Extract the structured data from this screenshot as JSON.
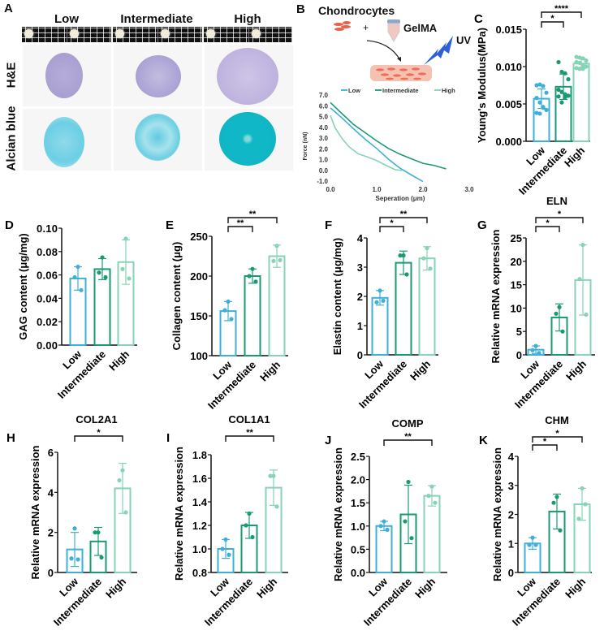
{
  "colors": {
    "low": "#3eb0d8",
    "intermediate": "#1a9a72",
    "high": "#86d3b6",
    "axis": "#111111"
  },
  "panel_a": {
    "letter": "A",
    "columns": [
      "Low",
      "Intermediate",
      "High"
    ],
    "rows": [
      "H&E",
      "Alcian blue"
    ]
  },
  "panel_b": {
    "letter": "B",
    "schematic": {
      "cells_label": "Chondrocytes",
      "plus": "+",
      "gel_label": "GelMA",
      "uv_label": "UV"
    }
  },
  "chart_data": [
    {
      "id": "B",
      "type": "line",
      "title": "",
      "xlabel": "Seperation (μm)",
      "ylabel": "Force (nN)",
      "xlim": [
        0,
        3
      ],
      "ylim": [
        -1,
        7
      ],
      "xticks": [
        "0.0",
        "1.0",
        "2.0",
        "3.0"
      ],
      "yticks": [
        "-1.0",
        "0.0",
        "1.0",
        "2.0",
        "3.0",
        "4.0",
        "5.0",
        "6.0",
        "7.0"
      ],
      "legend_position": "top",
      "series": [
        {
          "name": "Low",
          "points": [
            [
              0,
              5.8
            ],
            [
              0.25,
              4.9
            ],
            [
              0.5,
              3.9
            ],
            [
              0.75,
              2.9
            ],
            [
              1.0,
              2.0
            ],
            [
              1.25,
              1.0
            ],
            [
              1.5,
              0.2
            ],
            [
              1.75,
              -0.4
            ],
            [
              2.0,
              -1.0
            ]
          ]
        },
        {
          "name": "Intermediate",
          "points": [
            [
              0,
              6.3
            ],
            [
              0.25,
              5.3
            ],
            [
              0.5,
              4.3
            ],
            [
              0.75,
              3.5
            ],
            [
              1.0,
              2.7
            ],
            [
              1.25,
              2.0
            ],
            [
              1.5,
              1.5
            ],
            [
              1.75,
              1.1
            ],
            [
              2.0,
              0.7
            ],
            [
              2.25,
              0.45
            ],
            [
              2.5,
              0.1
            ]
          ]
        },
        {
          "name": "High",
          "points": [
            [
              0,
              5.1
            ],
            [
              0.1,
              4.0
            ],
            [
              0.25,
              3.0
            ],
            [
              0.4,
              2.2
            ],
            [
              0.6,
              1.5
            ],
            [
              0.8,
              1.2
            ],
            [
              1.0,
              0.9
            ],
            [
              1.2,
              0.5
            ],
            [
              1.4,
              0.1
            ],
            [
              1.55,
              0.0
            ]
          ]
        }
      ]
    },
    {
      "id": "C",
      "type": "bar",
      "title": "",
      "ylabel": "Young's Modulus(MPa)",
      "categories": [
        "Low",
        "Intermediate",
        "High"
      ],
      "ylim": [
        0,
        0.015
      ],
      "yticks": [
        "0.000",
        "0.005",
        "0.010",
        "0.015"
      ],
      "means": [
        0.0057,
        0.0073,
        0.0104
      ],
      "sd": [
        0.0013,
        0.0017,
        0.0007
      ],
      "points": [
        [
          0.0075,
          0.0076,
          0.0074,
          0.0065,
          0.0058,
          0.0052,
          0.0045,
          0.0042,
          0.0038,
          0.0037,
          0.0046
        ],
        [
          0.0106,
          0.0093,
          0.0091,
          0.0083,
          0.0069,
          0.0066,
          0.0063,
          0.0061,
          0.006,
          0.0052,
          0.0059
        ],
        [
          0.0113,
          0.0112,
          0.0111,
          0.0108,
          0.0106,
          0.0105,
          0.0102,
          0.01,
          0.0098,
          0.0097,
          0.0097
        ]
      ],
      "significance": [
        {
          "from": 0,
          "to": 1,
          "label": "*"
        },
        {
          "from": 0,
          "to": 2,
          "label": "****"
        }
      ]
    },
    {
      "id": "D",
      "type": "bar",
      "title": "",
      "ylabel": "GAG content (μg/mg)",
      "categories": [
        "Low",
        "Intermediate",
        "High"
      ],
      "ylim": [
        0,
        0.1
      ],
      "yticks": [
        "0.00",
        "0.02",
        "0.04",
        "0.06",
        "0.08",
        "0.10"
      ],
      "means": [
        0.057,
        0.065,
        0.071
      ],
      "sd": [
        0.01,
        0.009,
        0.019
      ],
      "points": [
        [
          0.067,
          0.058,
          0.047
        ],
        [
          0.075,
          0.062,
          0.058
        ],
        [
          0.091,
          0.065,
          0.057
        ]
      ],
      "significance": []
    },
    {
      "id": "E",
      "type": "bar",
      "title": "",
      "ylabel": "Collagen content (μg)",
      "categories": [
        "Low",
        "Intermediate",
        "High"
      ],
      "ylim": [
        100,
        250
      ],
      "yticks": [
        "100",
        "150",
        "200",
        "250"
      ],
      "means": [
        156,
        200,
        225
      ],
      "sd": [
        12,
        9,
        14
      ],
      "points": [
        [
          168,
          157,
          146
        ],
        [
          209,
          200,
          193
        ],
        [
          238,
          219,
          220
        ]
      ],
      "significance": [
        {
          "from": 0,
          "to": 1,
          "label": "**"
        },
        {
          "from": 0,
          "to": 2,
          "label": "**"
        }
      ]
    },
    {
      "id": "F",
      "type": "bar",
      "title": "",
      "ylabel": "Elastin content (μg/mg)",
      "categories": [
        "Low",
        "Intermediate",
        "High"
      ],
      "ylim": [
        0,
        4
      ],
      "yticks": [
        "0",
        "1",
        "2",
        "3",
        "4"
      ],
      "means": [
        1.95,
        3.15,
        3.3
      ],
      "sd": [
        0.25,
        0.4,
        0.4
      ],
      "points": [
        [
          2.2,
          1.8,
          1.85
        ],
        [
          3.4,
          3.4,
          2.75
        ],
        [
          3.65,
          3.3,
          2.95
        ]
      ],
      "significance": [
        {
          "from": 0,
          "to": 1,
          "label": "*"
        },
        {
          "from": 0,
          "to": 2,
          "label": "**"
        }
      ]
    },
    {
      "id": "G",
      "type": "bar",
      "title": "ELN",
      "ylabel": "Relative mRNA expression",
      "categories": [
        "Low",
        "Intermediate",
        "High"
      ],
      "ylim": [
        0,
        25
      ],
      "yticks": [
        "0",
        "5",
        "10",
        "15",
        "20",
        "25"
      ],
      "means": [
        1.1,
        8.0,
        16.0
      ],
      "sd": [
        0.8,
        2.9,
        7.5
      ],
      "points": [
        [
          1.9,
          1.0,
          0.4
        ],
        [
          10.2,
          8.8,
          5.0
        ],
        [
          23.5,
          16.2,
          8.6
        ]
      ],
      "significance": [
        {
          "from": 0,
          "to": 1,
          "label": "*"
        },
        {
          "from": 0,
          "to": 2,
          "label": "*"
        }
      ]
    },
    {
      "id": "H",
      "type": "bar",
      "title": "COL2A1",
      "ylabel": "Relative mRNA expression",
      "categories": [
        "Low",
        "Intermediate",
        "High"
      ],
      "ylim": [
        0,
        6
      ],
      "yticks": [
        "0",
        "2",
        "4",
        "6"
      ],
      "means": [
        1.15,
        1.55,
        4.2
      ],
      "sd": [
        0.85,
        0.7,
        1.25
      ],
      "points": [
        [
          2.2,
          0.7,
          0.65
        ],
        [
          2.0,
          2.0,
          0.75
        ],
        [
          5.1,
          4.6,
          3.0
        ]
      ],
      "significance": [
        {
          "from": 0,
          "to": 2,
          "label": "*"
        }
      ]
    },
    {
      "id": "I",
      "type": "bar",
      "title": "COL1A1",
      "ylabel": "Relative mRNA expression",
      "categories": [
        "Low",
        "Intermediate",
        "High"
      ],
      "ylim": [
        0.8,
        1.8
      ],
      "yticks": [
        "0.8",
        "1.0",
        "1.2",
        "1.4",
        "1.6",
        "1.8"
      ],
      "means": [
        1.0,
        1.2,
        1.52
      ],
      "sd": [
        0.08,
        0.11,
        0.15
      ],
      "points": [
        [
          1.08,
          1.0,
          0.95
        ],
        [
          1.3,
          1.2,
          1.1
        ],
        [
          1.62,
          1.62,
          1.36
        ]
      ],
      "significance": [
        {
          "from": 0,
          "to": 2,
          "label": "**"
        }
      ]
    },
    {
      "id": "J",
      "type": "bar",
      "title": "COMP",
      "ylabel": "Relative mRNA expression",
      "categories": [
        "Low",
        "Intermediate",
        "High"
      ],
      "ylim": [
        0,
        2.5
      ],
      "yticks": [
        "0.0",
        "0.5",
        "1.0",
        "1.5",
        "2.0",
        "2.5"
      ],
      "means": [
        1.0,
        1.25,
        1.65
      ],
      "sd": [
        0.1,
        0.63,
        0.22
      ],
      "points": [
        [
          1.1,
          1.0,
          0.92
        ],
        [
          1.95,
          1.1,
          0.74
        ],
        [
          1.85,
          1.65,
          1.5
        ]
      ],
      "significance": [
        {
          "from": 0,
          "to": 2,
          "label": "**"
        }
      ]
    },
    {
      "id": "K",
      "type": "bar",
      "title": "CHM",
      "ylabel": "Relative mRNA expression",
      "categories": [
        "Low",
        "Intermediate",
        "High"
      ],
      "ylim": [
        0,
        4
      ],
      "yticks": [
        "0",
        "1",
        "2",
        "3",
        "4"
      ],
      "means": [
        1.0,
        2.1,
        2.35
      ],
      "sd": [
        0.2,
        0.6,
        0.55
      ],
      "points": [
        [
          1.2,
          0.95,
          0.95
        ],
        [
          2.6,
          2.4,
          1.45
        ],
        [
          2.9,
          1.85,
          2.35
        ]
      ],
      "significance": [
        {
          "from": 0,
          "to": 1,
          "label": "*"
        },
        {
          "from": 0,
          "to": 2,
          "label": "*"
        }
      ]
    }
  ]
}
